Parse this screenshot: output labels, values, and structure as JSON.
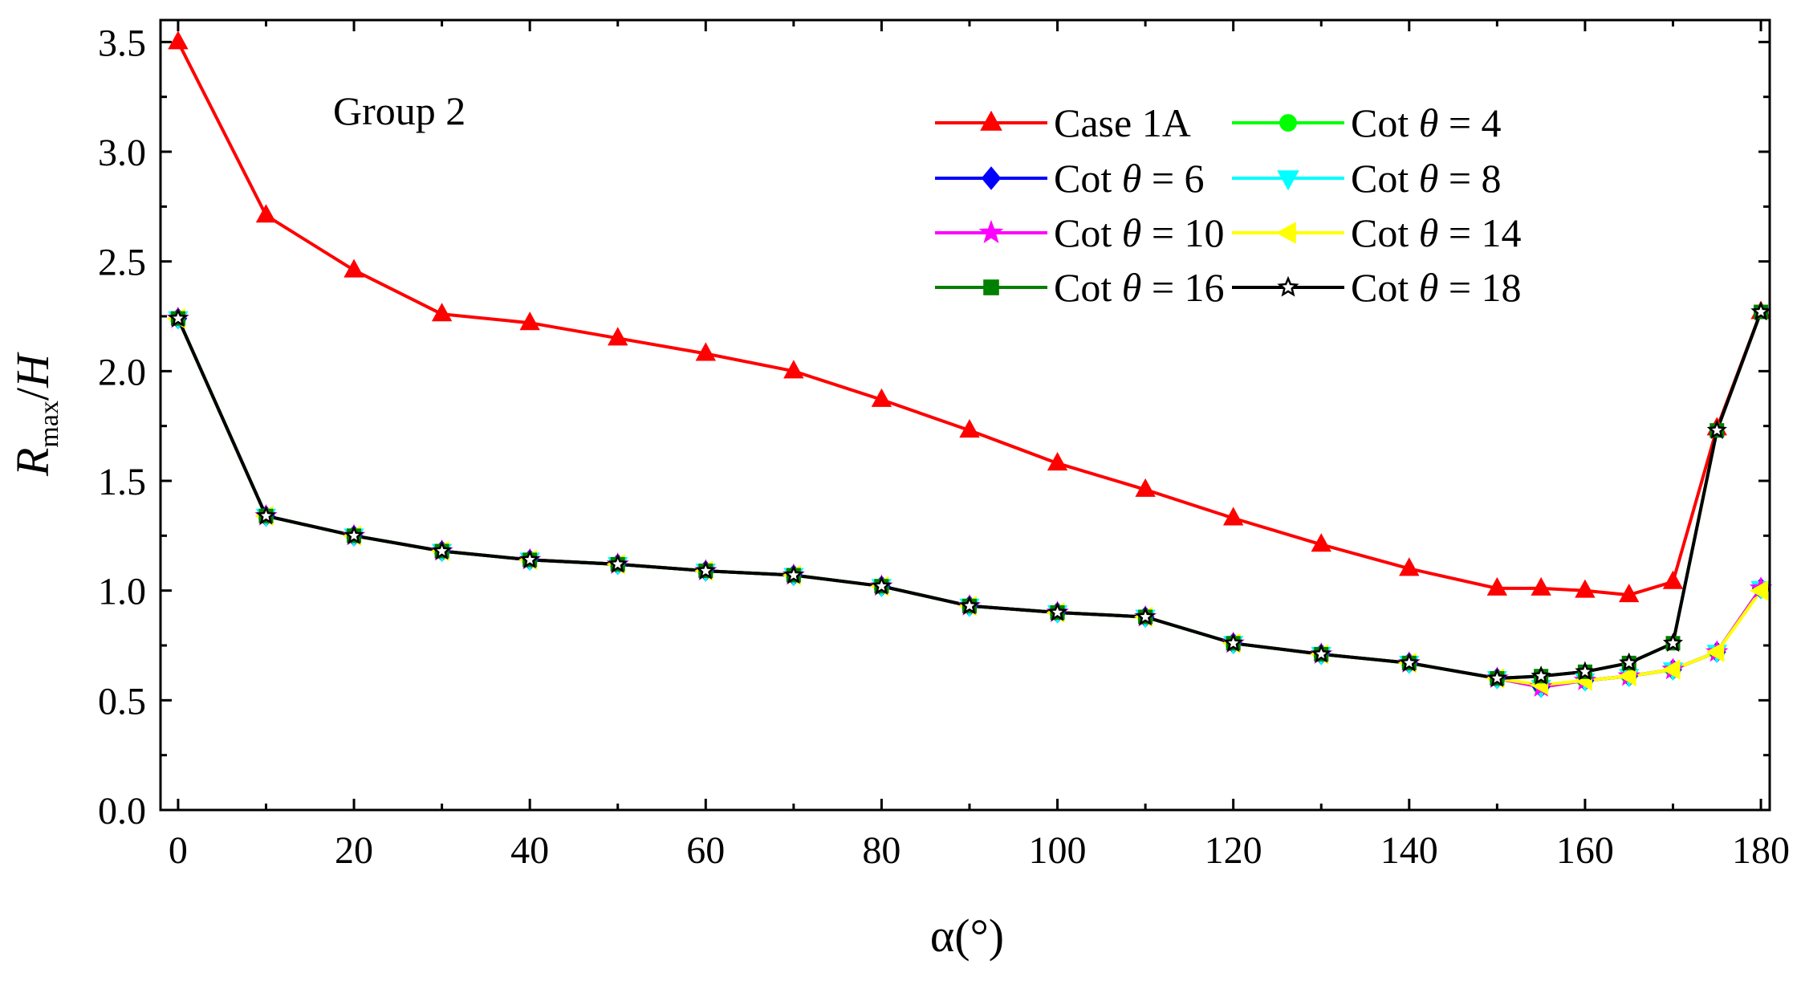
{
  "chart_data": {
    "type": "line",
    "annotation": "Group 2",
    "xlabel": "α(°)",
    "ylabel_main": "R",
    "ylabel_sub": "max",
    "ylabel_tail": "/H",
    "xlim": [
      -2,
      181
    ],
    "ylim": [
      0,
      3.6
    ],
    "xticks": [
      0,
      20,
      40,
      60,
      80,
      100,
      120,
      140,
      160,
      180
    ],
    "yticks": [
      0.0,
      0.5,
      1.0,
      1.5,
      2.0,
      2.5,
      3.0,
      3.5
    ],
    "ytick_labels": [
      "0.0",
      "0.5",
      "1.0",
      "1.5",
      "2.0",
      "2.5",
      "3.0",
      "3.5"
    ],
    "x": [
      0,
      10,
      20,
      30,
      40,
      50,
      60,
      70,
      80,
      90,
      100,
      110,
      120,
      130,
      140,
      150,
      155,
      160,
      165,
      170,
      175,
      180
    ],
    "legend_position": "top-right",
    "series": [
      {
        "name": "Case 1A",
        "label_prefix": "Case 1A",
        "label_suffix": "",
        "color": "#ff0000",
        "marker": "triangle-up",
        "values": [
          3.5,
          2.71,
          2.46,
          2.26,
          2.22,
          2.15,
          2.08,
          2.0,
          1.87,
          1.73,
          1.58,
          1.46,
          1.33,
          1.21,
          1.1,
          1.01,
          1.01,
          1.0,
          0.98,
          1.04,
          1.74,
          2.27
        ]
      },
      {
        "name": "Cot θ = 4",
        "label_prefix": "Cot ",
        "label_suffix": " = 4",
        "color": "#00ff00",
        "marker": "circle",
        "values": [
          2.24,
          1.34,
          1.25,
          1.18,
          1.14,
          1.12,
          1.09,
          1.07,
          1.02,
          0.93,
          0.9,
          0.88,
          0.76,
          0.71,
          0.67,
          0.6,
          0.56,
          0.59,
          0.61,
          0.64,
          0.72,
          1.01
        ]
      },
      {
        "name": "Cot θ = 6",
        "label_prefix": "Cot ",
        "label_suffix": " = 6",
        "color": "#0000ff",
        "marker": "diamond",
        "values": [
          2.24,
          1.34,
          1.25,
          1.18,
          1.14,
          1.12,
          1.09,
          1.07,
          1.02,
          0.93,
          0.9,
          0.88,
          0.76,
          0.71,
          0.67,
          0.6,
          0.56,
          0.59,
          0.61,
          0.64,
          0.72,
          1.01
        ]
      },
      {
        "name": "Cot θ = 8",
        "label_prefix": "Cot ",
        "label_suffix": " = 8",
        "color": "#00ffff",
        "marker": "triangle-down",
        "values": [
          2.24,
          1.34,
          1.25,
          1.18,
          1.14,
          1.12,
          1.09,
          1.07,
          1.02,
          0.93,
          0.9,
          0.88,
          0.76,
          0.71,
          0.67,
          0.6,
          0.56,
          0.59,
          0.61,
          0.64,
          0.72,
          1.01
        ]
      },
      {
        "name": "Cot θ = 10",
        "label_prefix": "Cot ",
        "label_suffix": " = 10",
        "color": "#ff00ff",
        "marker": "star",
        "values": [
          2.24,
          1.34,
          1.25,
          1.18,
          1.14,
          1.12,
          1.09,
          1.07,
          1.02,
          0.93,
          0.9,
          0.88,
          0.76,
          0.71,
          0.67,
          0.6,
          0.56,
          0.59,
          0.61,
          0.64,
          0.72,
          1.01
        ]
      },
      {
        "name": "Cot θ = 14",
        "label_prefix": "Cot ",
        "label_suffix": " = 14",
        "color": "#ffff00",
        "marker": "triangle-left",
        "values": [
          2.24,
          1.34,
          1.25,
          1.18,
          1.14,
          1.12,
          1.09,
          1.07,
          1.02,
          0.93,
          0.9,
          0.88,
          0.76,
          0.71,
          0.67,
          0.6,
          0.57,
          0.59,
          0.61,
          0.64,
          0.72,
          1.0
        ]
      },
      {
        "name": "Cot θ = 16",
        "label_prefix": "Cot ",
        "label_suffix": " = 16",
        "color": "#008000",
        "marker": "square",
        "values": [
          2.24,
          1.34,
          1.25,
          1.18,
          1.14,
          1.12,
          1.09,
          1.07,
          1.02,
          0.93,
          0.9,
          0.88,
          0.76,
          0.71,
          0.67,
          0.6,
          0.61,
          0.63,
          0.67,
          0.76,
          1.73,
          2.27
        ]
      },
      {
        "name": "Cot θ = 18",
        "label_prefix": "Cot ",
        "label_suffix": " = 18",
        "color": "#000000",
        "marker": "star-open",
        "values": [
          2.24,
          1.34,
          1.25,
          1.18,
          1.14,
          1.12,
          1.09,
          1.07,
          1.02,
          0.93,
          0.9,
          0.88,
          0.76,
          0.71,
          0.67,
          0.6,
          0.61,
          0.63,
          0.67,
          0.76,
          1.73,
          2.27
        ]
      }
    ],
    "theta_symbol": "θ"
  }
}
